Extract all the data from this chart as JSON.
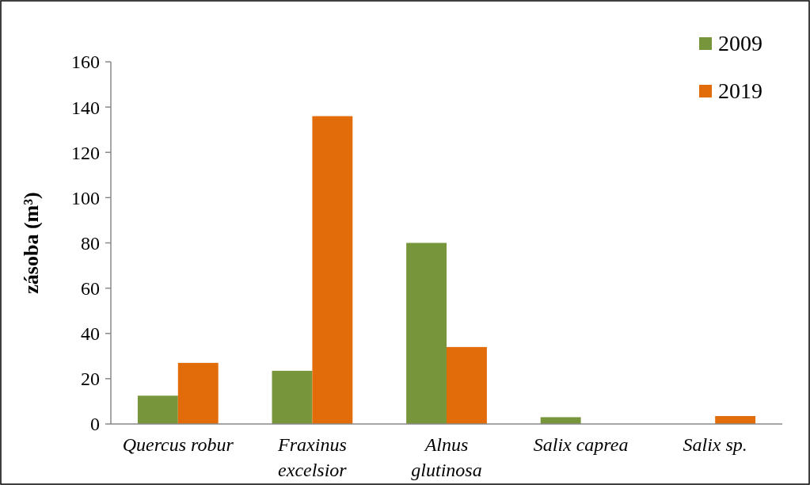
{
  "chart_data": {
    "type": "bar",
    "ylabel": "zásoba  (m³)",
    "categories": [
      "Quercus robur",
      "Fraxinus excelsior",
      "Alnus glutinosa",
      "Salix caprea",
      "Salix sp."
    ],
    "series": [
      {
        "name": "2009",
        "color": "#77963b",
        "values": [
          12.5,
          23.5,
          80,
          3,
          null
        ]
      },
      {
        "name": "2019",
        "color": "#e36c0a",
        "values": [
          27,
          136,
          34,
          null,
          3.5
        ]
      }
    ],
    "ylim": [
      0,
      160
    ],
    "yticks": [
      0,
      20,
      40,
      60,
      80,
      100,
      120,
      140,
      160
    ],
    "grid": false,
    "legend": "top right"
  }
}
